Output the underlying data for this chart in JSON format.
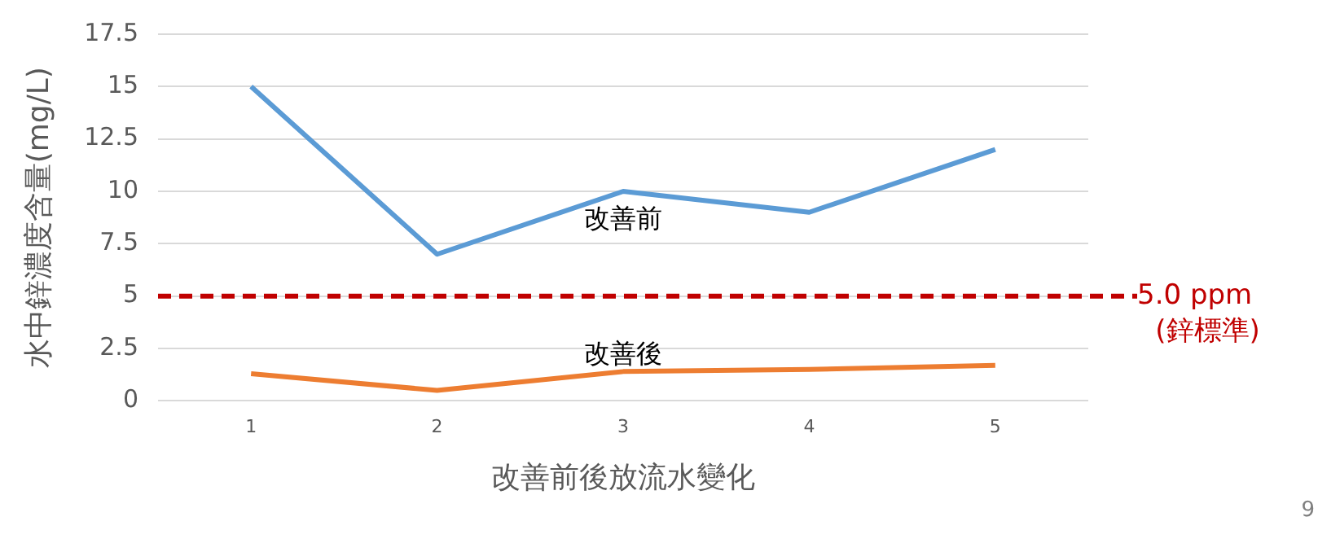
{
  "chart_data": {
    "type": "line",
    "xlabel": "改善前後放流水變化",
    "ylabel": "水中鋅濃度含量(mg/L)",
    "categories": [
      "1",
      "2",
      "3",
      "4",
      "5"
    ],
    "series": [
      {
        "name": "改善前",
        "color": "#5b9bd5",
        "values": [
          15,
          7,
          10,
          9,
          12
        ]
      },
      {
        "name": "改善後",
        "color": "#ed7d31",
        "values": [
          1.3,
          0.5,
          1.4,
          1.5,
          1.7
        ]
      }
    ],
    "ylim": [
      0,
      17.5
    ],
    "yticks": [
      0,
      2.5,
      5,
      7.5,
      10,
      12.5,
      15,
      17.5
    ],
    "grid": "y",
    "legend": false,
    "marker": "none",
    "line_style": "solid",
    "ref_lines": [
      {
        "axis": "y",
        "value": 5,
        "label": "5.0 ppm (鋅標準)",
        "color": "#c00000",
        "line_style": "dashed"
      }
    ],
    "annotations": [
      "9"
    ]
  }
}
